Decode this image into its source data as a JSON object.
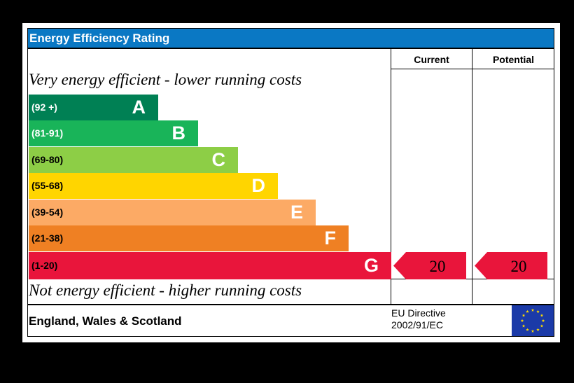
{
  "chart_data": {
    "type": "bar",
    "title": "Energy Efficiency Rating",
    "columns": [
      "Current",
      "Potential"
    ],
    "top_caption": "Very energy efficient - lower running costs",
    "bottom_caption": "Not energy efficient - higher running costs",
    "categories": [
      "A",
      "B",
      "C",
      "D",
      "E",
      "F",
      "G"
    ],
    "ranges": [
      "(92 +)",
      "(81-91)",
      "(69-80)",
      "(55-68)",
      "(39-54)",
      "(21-38)",
      "(1-20)"
    ],
    "series": [
      {
        "name": "Current",
        "values": [
          null,
          null,
          null,
          null,
          null,
          null,
          20
        ]
      },
      {
        "name": "Potential",
        "values": [
          null,
          null,
          null,
          null,
          null,
          null,
          20
        ]
      }
    ],
    "colors": [
      "#008054",
      "#19b459",
      "#8dce46",
      "#ffd500",
      "#fcaa65",
      "#ef8023",
      "#e9153b"
    ],
    "range_text_colors": [
      "#ffffff",
      "#ffffff",
      "#000000",
      "#000000",
      "#000000",
      "#000000",
      "#000000"
    ]
  },
  "footer": {
    "region": "England, Wales & Scotland",
    "directive_line1": "EU Directive",
    "directive_line2": "2002/91/EC"
  }
}
